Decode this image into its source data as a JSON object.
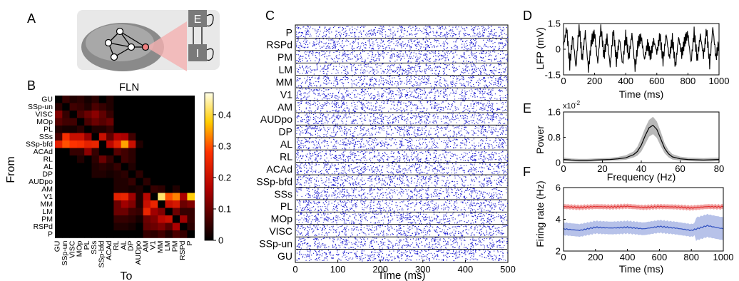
{
  "panels": {
    "A": {
      "label": "A",
      "node_E": "E",
      "node_I": "I"
    },
    "B": {
      "label": "B",
      "title": "FLN",
      "ylabel": "From",
      "xlabel": "To",
      "areas": [
        "GU",
        "SSp-un",
        "VISC",
        "MOp",
        "PL",
        "SSs",
        "SSp-bfd",
        "ACAd",
        "RL",
        "AL",
        "DP",
        "AUDpo",
        "AM",
        "V1",
        "MM",
        "LM",
        "PM",
        "RSPd",
        "P"
      ],
      "colorbar_ticks": [
        "0.4",
        "0.3",
        "0.2",
        "0.1",
        "0"
      ]
    },
    "C": {
      "label": "C",
      "rows": [
        "P",
        "RSPd",
        "PM",
        "LM",
        "MM",
        "V1",
        "AM",
        "AUDpo",
        "DP",
        "AL",
        "RL",
        "ACAd",
        "SSp-bfd",
        "SSs",
        "PL",
        "MOp",
        "VISC",
        "SSp-un",
        "GU"
      ],
      "xticks": [
        "0",
        "100",
        "200",
        "300",
        "400",
        "500"
      ],
      "xlabel": "Time (ms)",
      "dot_color": "#1f1fd0"
    },
    "D": {
      "label": "D",
      "ylabel": "LFP (mV)",
      "xlabel": "Time (ms)",
      "yticks": [
        "1.5",
        "0",
        "-1.5"
      ],
      "xticks": [
        "0",
        "200",
        "400",
        "600",
        "800",
        "1000"
      ]
    },
    "E": {
      "label": "E",
      "ylabel": "Power",
      "xlabel": "Frequency (Hz)",
      "yticks": [
        "1.6",
        "0.8",
        "0"
      ],
      "scale_note": "x10",
      "scale_exp": "-2",
      "xticks": [
        "0",
        "20",
        "40",
        "60",
        "80"
      ]
    },
    "F": {
      "label": "F",
      "ylabel": "Firing rate (Hz)",
      "xlabel": "Time (ms)",
      "yticks": [
        "6",
        "4",
        "2"
      ],
      "xticks": [
        "0",
        "200",
        "400",
        "600",
        "800",
        "1000"
      ],
      "exc_color": "#e03030",
      "inh_color": "#3050c0"
    }
  },
  "chart_data": [
    {
      "type": "heatmap",
      "title": "FLN",
      "xlabel": "To",
      "ylabel": "From",
      "rows": [
        "GU",
        "SSp-un",
        "VISC",
        "MOp",
        "PL",
        "SSs",
        "SSp-bfd",
        "ACAd",
        "RL",
        "AL",
        "DP",
        "AUDpo",
        "AM",
        "V1",
        "MM",
        "LM",
        "PM",
        "RSPd",
        "P"
      ],
      "columns": [
        "GU",
        "SSp-un",
        "VISC",
        "MOp",
        "PL",
        "SSs",
        "SSp-bfd",
        "ACAd",
        "RL",
        "AL",
        "DP",
        "AUDpo",
        "AM",
        "V1",
        "MM",
        "LM",
        "PM",
        "RSPd",
        "P"
      ],
      "values": [
        [
          0.0,
          0.05,
          0.03,
          0.04,
          0.02,
          0.04,
          0.0,
          0.03,
          0.0,
          0.0,
          0.0,
          0.0,
          0.0,
          0.0,
          0.0,
          0.0,
          0.0,
          0.0,
          0.0
        ],
        [
          0.04,
          0.0,
          0.06,
          0.05,
          0.03,
          0.07,
          0.05,
          0.03,
          0.0,
          0.0,
          0.0,
          0.0,
          0.0,
          0.0,
          0.0,
          0.0,
          0.0,
          0.0,
          0.0
        ],
        [
          0.12,
          0.05,
          0.0,
          0.07,
          0.1,
          0.13,
          0.09,
          0.05,
          0.0,
          0.0,
          0.0,
          0.0,
          0.0,
          0.0,
          0.0,
          0.0,
          0.0,
          0.0,
          0.0
        ],
        [
          0.08,
          0.06,
          0.06,
          0.0,
          0.07,
          0.1,
          0.08,
          0.1,
          0.0,
          0.0,
          0.0,
          0.0,
          0.0,
          0.0,
          0.0,
          0.0,
          0.0,
          0.0,
          0.0
        ],
        [
          0.03,
          0.02,
          0.02,
          0.04,
          0.0,
          0.03,
          0.03,
          0.05,
          0.0,
          0.0,
          0.0,
          0.0,
          0.0,
          0.0,
          0.0,
          0.0,
          0.0,
          0.0,
          0.0
        ],
        [
          0.07,
          0.27,
          0.2,
          0.2,
          0.14,
          0.0,
          0.2,
          0.09,
          0.17,
          0.16,
          0.06,
          0.0,
          0.0,
          0.0,
          0.0,
          0.0,
          0.0,
          0.0,
          0.0
        ],
        [
          0.24,
          0.3,
          0.28,
          0.27,
          0.24,
          0.25,
          0.0,
          0.18,
          0.24,
          0.35,
          0.2,
          0.03,
          0.0,
          0.0,
          0.0,
          0.0,
          0.0,
          0.0,
          0.0
        ],
        [
          0.0,
          0.0,
          0.05,
          0.05,
          0.13,
          0.05,
          0.0,
          0.0,
          0.08,
          0.06,
          0.04,
          0.0,
          0.0,
          0.0,
          0.0,
          0.0,
          0.0,
          0.0,
          0.0
        ],
        [
          0.0,
          0.0,
          0.0,
          0.03,
          0.0,
          0.04,
          0.1,
          0.05,
          0.0,
          0.06,
          0.04,
          0.0,
          0.0,
          0.0,
          0.0,
          0.0,
          0.0,
          0.0,
          0.0
        ],
        [
          0.0,
          0.0,
          0.0,
          0.0,
          0.0,
          0.03,
          0.04,
          0.03,
          0.05,
          0.0,
          0.03,
          0.0,
          0.0,
          0.0,
          0.0,
          0.0,
          0.0,
          0.0,
          0.0
        ],
        [
          0.0,
          0.0,
          0.0,
          0.0,
          0.0,
          0.03,
          0.03,
          0.02,
          0.03,
          0.04,
          0.0,
          0.04,
          0.0,
          0.0,
          0.0,
          0.0,
          0.0,
          0.0,
          0.0
        ],
        [
          0.0,
          0.0,
          0.0,
          0.0,
          0.0,
          0.0,
          0.0,
          0.0,
          0.03,
          0.03,
          0.05,
          0.0,
          0.04,
          0.0,
          0.0,
          0.0,
          0.0,
          0.0,
          0.0
        ],
        [
          0.0,
          0.0,
          0.0,
          0.0,
          0.0,
          0.0,
          0.0,
          0.0,
          0.03,
          0.03,
          0.02,
          0.03,
          0.0,
          0.05,
          0.04,
          0.0,
          0.03,
          0.0,
          0.0
        ],
        [
          0.0,
          0.0,
          0.0,
          0.0,
          0.0,
          0.0,
          0.0,
          0.0,
          0.24,
          0.25,
          0.15,
          0.03,
          0.18,
          0.0,
          0.42,
          0.3,
          0.33,
          0.16,
          0.38
        ],
        [
          0.0,
          0.0,
          0.0,
          0.0,
          0.0,
          0.0,
          0.0,
          0.0,
          0.1,
          0.15,
          0.12,
          0.03,
          0.2,
          0.25,
          0.0,
          0.2,
          0.22,
          0.1,
          0.12
        ],
        [
          0.0,
          0.0,
          0.0,
          0.0,
          0.0,
          0.0,
          0.0,
          0.0,
          0.1,
          0.1,
          0.06,
          0.05,
          0.25,
          0.15,
          0.12,
          0.0,
          0.1,
          0.05,
          0.05
        ],
        [
          0.0,
          0.0,
          0.0,
          0.0,
          0.0,
          0.0,
          0.0,
          0.0,
          0.05,
          0.05,
          0.04,
          0.02,
          0.1,
          0.12,
          0.18,
          0.2,
          0.0,
          0.15,
          0.05
        ],
        [
          0.0,
          0.0,
          0.0,
          0.0,
          0.0,
          0.0,
          0.0,
          0.0,
          0.03,
          0.03,
          0.02,
          0.0,
          0.09,
          0.1,
          0.12,
          0.08,
          0.16,
          0.0,
          0.04
        ],
        [
          0.0,
          0.0,
          0.0,
          0.0,
          0.0,
          0.0,
          0.0,
          0.0,
          0.0,
          0.0,
          0.0,
          0.0,
          0.05,
          0.04,
          0.06,
          0.03,
          0.07,
          0.05,
          0.0
        ]
      ],
      "zlim": [
        0,
        0.47
      ]
    },
    {
      "type": "line",
      "xlabel": "Time (ms)",
      "ylabel": "LFP (mV)",
      "xlim": [
        0,
        1000
      ],
      "ylim": [
        -1.5,
        1.5
      ],
      "x": [
        0,
        20,
        40,
        60,
        80,
        100,
        120,
        140,
        160,
        180,
        200,
        220,
        240,
        260,
        280,
        300,
        320,
        340,
        360,
        380,
        400,
        420,
        440,
        460,
        480,
        500,
        520,
        540,
        560,
        580,
        600,
        620,
        640,
        660,
        680,
        700,
        720,
        740,
        760,
        780,
        800,
        820,
        840,
        860,
        880,
        900,
        920,
        940,
        960,
        980,
        1000
      ],
      "values": [
        0.2,
        1.2,
        -0.9,
        0.8,
        -1.1,
        1.4,
        -0.6,
        1.0,
        -1.2,
        0.5,
        0.9,
        -0.8,
        1.3,
        -0.4,
        0.7,
        -1.0,
        1.1,
        -0.7,
        0.6,
        -0.9,
        0.8,
        -0.5,
        0.9,
        -1.1,
        0.4,
        0.7,
        -0.6,
        0.3,
        -0.4,
        0.5,
        -0.2,
        0.8,
        -0.7,
        0.9,
        -0.5,
        0.6,
        -1.0,
        0.7,
        -0.3,
        0.5,
        0.9,
        -0.8,
        1.0,
        -0.6,
        0.8,
        -0.4,
        1.1,
        -0.9,
        1.3,
        -0.5,
        0.4
      ]
    },
    {
      "type": "line",
      "xlabel": "Frequency (Hz)",
      "ylabel": "Power",
      "xlim": [
        0,
        80
      ],
      "ylim": [
        0,
        1.6
      ],
      "x": [
        0,
        4,
        8,
        12,
        16,
        20,
        24,
        28,
        32,
        36,
        38,
        40,
        42,
        44,
        46,
        48,
        50,
        52,
        54,
        56,
        60,
        64,
        68,
        72,
        76,
        80
      ],
      "values": [
        0.1,
        0.08,
        0.07,
        0.07,
        0.08,
        0.09,
        0.1,
        0.12,
        0.15,
        0.25,
        0.35,
        0.55,
        0.85,
        1.1,
        1.18,
        1.05,
        0.75,
        0.45,
        0.28,
        0.18,
        0.12,
        0.1,
        0.09,
        0.08,
        0.09,
        0.1
      ],
      "band_upper": [
        0.16,
        0.13,
        0.12,
        0.12,
        0.13,
        0.14,
        0.15,
        0.18,
        0.23,
        0.35,
        0.5,
        0.78,
        1.1,
        1.35,
        1.45,
        1.3,
        0.98,
        0.62,
        0.4,
        0.27,
        0.19,
        0.16,
        0.15,
        0.14,
        0.15,
        0.16
      ],
      "band_lower": [
        0.05,
        0.04,
        0.03,
        0.03,
        0.04,
        0.05,
        0.06,
        0.07,
        0.09,
        0.16,
        0.22,
        0.35,
        0.58,
        0.82,
        0.9,
        0.78,
        0.52,
        0.3,
        0.17,
        0.1,
        0.06,
        0.05,
        0.04,
        0.04,
        0.04,
        0.05
      ]
    },
    {
      "type": "line",
      "xlabel": "Time (ms)",
      "ylabel": "Firing rate (Hz)",
      "xlim": [
        0,
        1000
      ],
      "ylim": [
        2,
        6
      ],
      "x": [
        0,
        100,
        200,
        300,
        400,
        500,
        600,
        700,
        800,
        900,
        1000
      ],
      "series": [
        {
          "values": [
            4.8,
            4.75,
            4.8,
            4.78,
            4.82,
            4.75,
            4.8,
            4.78,
            4.72,
            4.8,
            4.78
          ],
          "band": 0.15
        },
        {
          "values": [
            3.4,
            3.3,
            3.5,
            3.45,
            3.5,
            3.4,
            3.55,
            3.45,
            3.3,
            3.6,
            3.4
          ],
          "band": 0.4
        }
      ]
    }
  ]
}
